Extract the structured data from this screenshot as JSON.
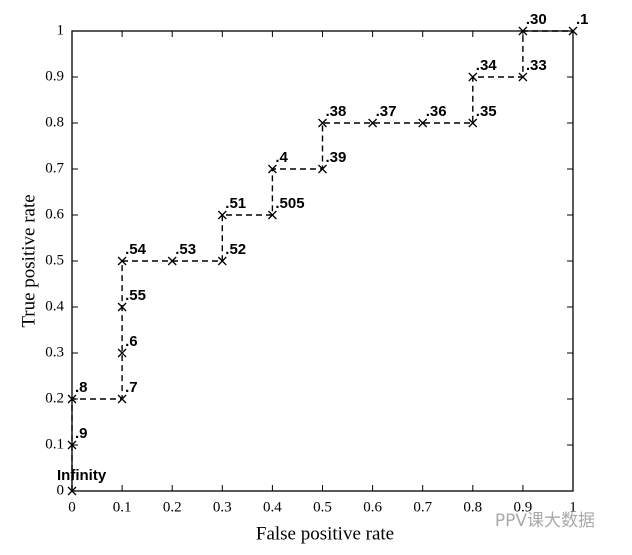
{
  "chart_data": {
    "type": "line",
    "xlabel": "False positive rate",
    "ylabel": "True positive rate",
    "x": [
      0,
      0,
      0,
      0.1,
      0.1,
      0.1,
      0.1,
      0.2,
      0.3,
      0.3,
      0.4,
      0.4,
      0.5,
      0.5,
      0.6,
      0.7,
      0.8,
      0.8,
      0.9,
      0.9,
      1
    ],
    "values": [
      0,
      0.1,
      0.2,
      0.2,
      0.3,
      0.4,
      0.5,
      0.5,
      0.5,
      0.6,
      0.6,
      0.7,
      0.7,
      0.8,
      0.8,
      0.8,
      0.8,
      0.9,
      0.9,
      1,
      1
    ],
    "point_labels": [
      "Infinity",
      ".9",
      ".8",
      ".7",
      ".6",
      ".55",
      ".54",
      ".53",
      ".52",
      ".51",
      ".505",
      ".4",
      ".39",
      ".38",
      ".37",
      ".36",
      ".35",
      ".34",
      ".33",
      ".30",
      ".1"
    ],
    "color": "#000000",
    "xlim": [
      0,
      1
    ],
    "ylim": [
      0,
      1
    ],
    "xticks": [
      0,
      0.1,
      0.2,
      0.3,
      0.4,
      0.5,
      0.6,
      0.7,
      0.8,
      0.9,
      1
    ],
    "yticks": [
      0,
      0.1,
      0.2,
      0.3,
      0.4,
      0.5,
      0.6,
      0.7,
      0.8,
      0.9,
      1
    ],
    "grid": false
  },
  "watermark": "PPV课大数据"
}
